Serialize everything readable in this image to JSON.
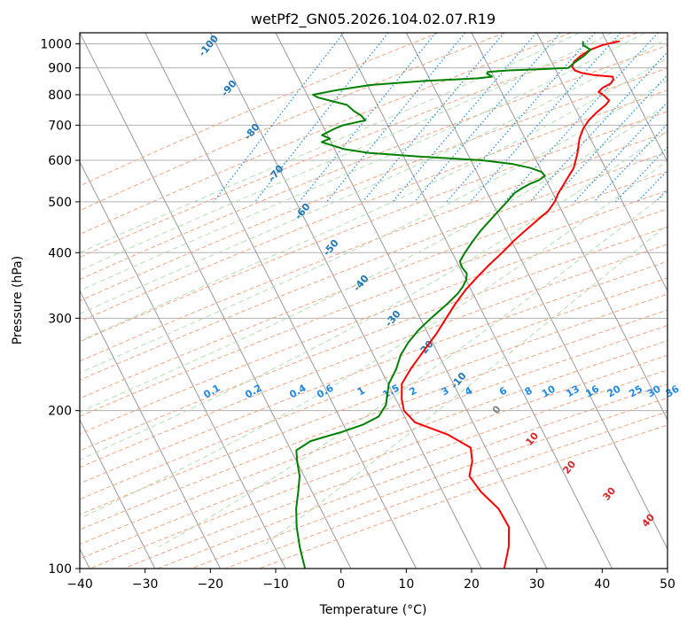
{
  "chart_data": {
    "type": "line",
    "title": "wetPf2_GN05.2026.104.02.07.R19",
    "xlabel": "Temperature (°C)",
    "ylabel": "Pressure (hPa)",
    "xlim": [
      -40,
      50
    ],
    "ylim": [
      1050,
      100
    ],
    "y_scale": "log",
    "grid": true,
    "x_ticks": [
      -40,
      -30,
      -20,
      -10,
      0,
      10,
      20,
      30,
      40,
      50
    ],
    "y_ticks": [
      100,
      200,
      300,
      400,
      500,
      600,
      700,
      800,
      900,
      1000
    ],
    "colors": {
      "temperature": "#ff0000",
      "dewpoint": "#008000",
      "dry_adiabat": "#f4a582",
      "moist_adiabat": "#b2dfb2",
      "mixing_ratio": "#1e88e5",
      "isotherm": "#999999",
      "potential_temperature_labels": "#1f77b4",
      "theta_e_labels": "#d62728",
      "mixing_ratio_labels": "#1e88e5"
    },
    "series": [
      {
        "key": "temperature",
        "points": [
          [
            1012,
            1.8
          ],
          [
            995,
            -0.5
          ],
          [
            975,
            -2.0
          ],
          [
            950,
            -3.0
          ],
          [
            925,
            -3.6
          ],
          [
            905,
            -3.5
          ],
          [
            890,
            -2.8
          ],
          [
            880,
            -1.5
          ],
          [
            872,
            0.5
          ],
          [
            866,
            3.5
          ],
          [
            855,
            3.8
          ],
          [
            840,
            3.7
          ],
          [
            825,
            2.8
          ],
          [
            810,
            2.5
          ],
          [
            795,
            3.8
          ],
          [
            780,
            4.8
          ],
          [
            765,
            4.6
          ],
          [
            740,
            3.8
          ],
          [
            715,
            3.2
          ],
          [
            690,
            3.0
          ],
          [
            660,
            3.2
          ],
          [
            620,
            4.0
          ],
          [
            580,
            4.6
          ],
          [
            550,
            4.4
          ],
          [
            520,
            4.2
          ],
          [
            500,
            4.3
          ],
          [
            480,
            4.0
          ],
          [
            460,
            3.0
          ],
          [
            440,
            2.0
          ],
          [
            420,
            1.0
          ],
          [
            400,
            0.2
          ],
          [
            380,
            -0.8
          ],
          [
            360,
            -1.7
          ],
          [
            340,
            -2.5
          ],
          [
            320,
            -3.0
          ],
          [
            300,
            -3.3
          ],
          [
            280,
            -3.6
          ],
          [
            260,
            -4.2
          ],
          [
            240,
            -4.8
          ],
          [
            225,
            -5.0
          ],
          [
            210,
            -3.8
          ],
          [
            200,
            -2.6
          ],
          [
            190,
            0.0
          ],
          [
            180,
            6.0
          ],
          [
            170,
            10.5
          ],
          [
            160,
            11.8
          ],
          [
            150,
            12.5
          ],
          [
            140,
            15.5
          ],
          [
            130,
            19.5
          ],
          [
            120,
            22.5
          ],
          [
            110,
            24.0
          ],
          [
            100,
            25.0
          ]
        ]
      },
      {
        "key": "dewpoint",
        "points": [
          [
            1012,
            -3.8
          ],
          [
            995,
            -3.5
          ],
          [
            975,
            -2.0
          ],
          [
            950,
            -2.5
          ],
          [
            920,
            -3.5
          ],
          [
            900,
            -4.0
          ],
          [
            895,
            -8.0
          ],
          [
            890,
            -13.0
          ],
          [
            884,
            -16.0
          ],
          [
            878,
            -16.0
          ],
          [
            866,
            -15.0
          ],
          [
            860,
            -17.0
          ],
          [
            850,
            -25.0
          ],
          [
            835,
            -33.0
          ],
          [
            815,
            -38.0
          ],
          [
            800,
            -41.0
          ],
          [
            790,
            -40.0
          ],
          [
            765,
            -35.0
          ],
          [
            745,
            -33.5
          ],
          [
            730,
            -32.0
          ],
          [
            715,
            -31.0
          ],
          [
            700,
            -34.0
          ],
          [
            690,
            -35.0
          ],
          [
            670,
            -36.5
          ],
          [
            660,
            -35.0
          ],
          [
            650,
            -36.0
          ],
          [
            640,
            -34.0
          ],
          [
            630,
            -32.0
          ],
          [
            620,
            -28.0
          ],
          [
            610,
            -20.0
          ],
          [
            600,
            -10.0
          ],
          [
            590,
            -5.0
          ],
          [
            580,
            -2.0
          ],
          [
            570,
            0.0
          ],
          [
            560,
            0.8
          ],
          [
            550,
            0.2
          ],
          [
            540,
            -1.0
          ],
          [
            530,
            -1.8
          ],
          [
            520,
            -2.5
          ],
          [
            500,
            -3.0
          ],
          [
            480,
            -3.6
          ],
          [
            460,
            -4.2
          ],
          [
            440,
            -4.8
          ],
          [
            420,
            -5.2
          ],
          [
            400,
            -5.5
          ],
          [
            385,
            -5.6
          ],
          [
            375,
            -4.8
          ],
          [
            365,
            -3.6
          ],
          [
            355,
            -3.2
          ],
          [
            345,
            -3.2
          ],
          [
            335,
            -3.4
          ],
          [
            320,
            -4.2
          ],
          [
            300,
            -5.6
          ],
          [
            285,
            -6.6
          ],
          [
            270,
            -7.2
          ],
          [
            255,
            -7.4
          ],
          [
            240,
            -7.0
          ],
          [
            225,
            -7.0
          ],
          [
            215,
            -6.4
          ],
          [
            205,
            -5.8
          ],
          [
            195,
            -6.0
          ],
          [
            188,
            -7.8
          ],
          [
            182,
            -10.5
          ],
          [
            175,
            -14.5
          ],
          [
            168,
            -16.0
          ],
          [
            160,
            -15.0
          ],
          [
            150,
            -13.5
          ],
          [
            140,
            -12.5
          ],
          [
            130,
            -11.5
          ],
          [
            120,
            -10.0
          ],
          [
            110,
            -8.0
          ],
          [
            100,
            -5.5
          ]
        ]
      }
    ],
    "potential_temperature_labels": [
      -100,
      -90,
      -80,
      -70,
      -60,
      -50,
      -40,
      -30,
      -20,
      -10
    ],
    "theta_e_labels": [
      0,
      10,
      20,
      30,
      40
    ],
    "mixing_ratio_labels": [
      "0.1",
      "0.2",
      "0.4",
      "0.6",
      "1",
      "1.5",
      "2",
      "3",
      "4",
      "6",
      "8",
      "10",
      "13",
      "16",
      "20",
      "25",
      "30",
      "36"
    ]
  }
}
